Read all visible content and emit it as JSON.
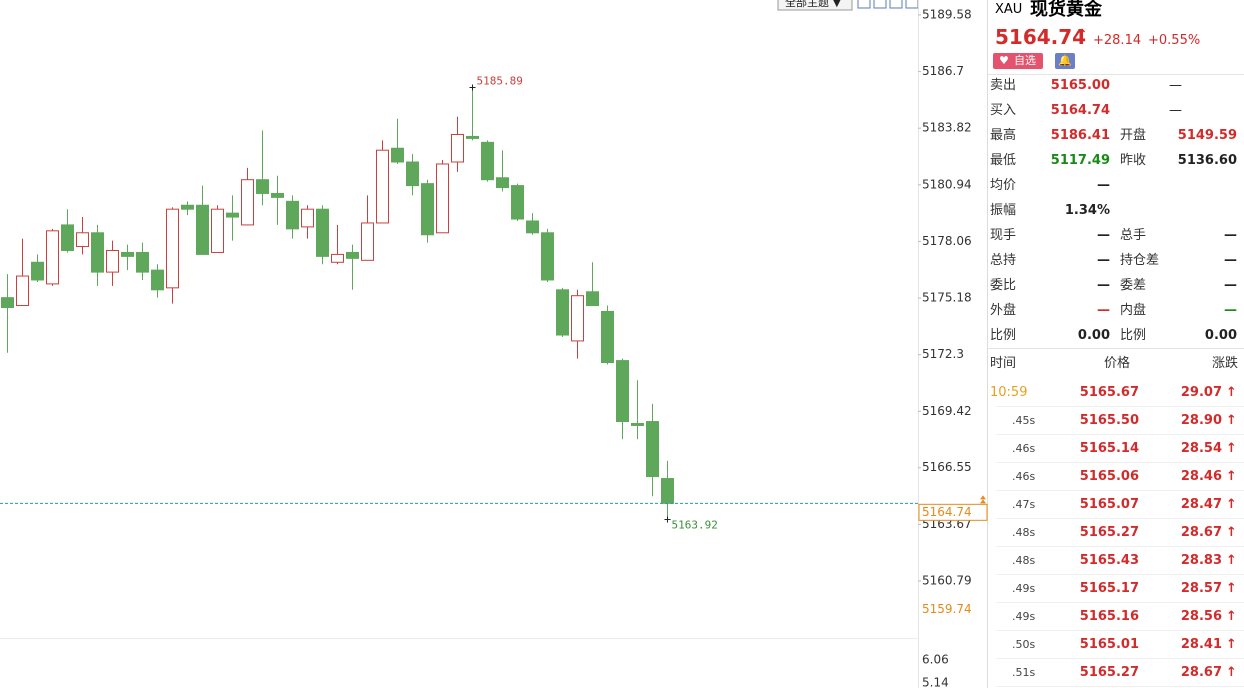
{
  "toolbar": {
    "theme_button": "全部主题"
  },
  "chart_data": {
    "type": "candlestick",
    "ylim": [
      5157.89,
      5190.34
    ],
    "yticks": [
      5189.58,
      5186.7,
      5183.82,
      5180.94,
      5178.06,
      5175.18,
      5172.3,
      5169.42,
      5166.55,
      5163.67,
      5160.79
    ],
    "last": 5164.74,
    "extra_labels": [
      5159.74
    ],
    "volume_ticks": [
      6.06,
      5.14
    ],
    "up_color": "#c8413f",
    "down_color": "#5fa75b",
    "last_color": "#e8891a",
    "last_line_color": "#2a9a9a",
    "candles": [
      {
        "open": 5175.2,
        "high": 5176.4,
        "low": 5172.4,
        "close": 5174.7
      },
      {
        "open": 5174.8,
        "high": 5178.2,
        "low": 5174.8,
        "close": 5176.3
      },
      {
        "open": 5177.0,
        "high": 5177.4,
        "low": 5176.0,
        "close": 5176.1
      },
      {
        "open": 5175.9,
        "high": 5178.7,
        "low": 5175.8,
        "close": 5178.6
      },
      {
        "open": 5178.9,
        "high": 5179.7,
        "low": 5177.5,
        "close": 5177.6
      },
      {
        "open": 5177.8,
        "high": 5179.3,
        "low": 5177.4,
        "close": 5178.5
      },
      {
        "open": 5178.5,
        "high": 5178.9,
        "low": 5175.8,
        "close": 5176.5
      },
      {
        "open": 5176.5,
        "high": 5178.1,
        "low": 5175.8,
        "close": 5177.6
      },
      {
        "open": 5177.5,
        "high": 5177.9,
        "low": 5176.6,
        "close": 5177.3
      },
      {
        "open": 5177.5,
        "high": 5178.0,
        "low": 5176.1,
        "close": 5176.5
      },
      {
        "open": 5176.6,
        "high": 5176.9,
        "low": 5175.2,
        "close": 5175.6
      },
      {
        "open": 5175.7,
        "high": 5179.8,
        "low": 5174.9,
        "close": 5179.7
      },
      {
        "open": 5179.9,
        "high": 5180.1,
        "low": 5179.4,
        "close": 5179.7
      },
      {
        "open": 5179.9,
        "high": 5180.9,
        "low": 5177.4,
        "close": 5177.4
      },
      {
        "open": 5177.5,
        "high": 5179.9,
        "low": 5177.5,
        "close": 5179.7
      },
      {
        "open": 5179.5,
        "high": 5180.4,
        "low": 5178.1,
        "close": 5179.3
      },
      {
        "open": 5178.9,
        "high": 5181.8,
        "low": 5178.9,
        "close": 5181.2
      },
      {
        "open": 5181.2,
        "high": 5183.7,
        "low": 5179.9,
        "close": 5180.5
      },
      {
        "open": 5180.5,
        "high": 5181.4,
        "low": 5178.9,
        "close": 5180.3
      },
      {
        "open": 5180.1,
        "high": 5180.4,
        "low": 5178.2,
        "close": 5178.7
      },
      {
        "open": 5178.8,
        "high": 5179.9,
        "low": 5178.2,
        "close": 5179.7
      },
      {
        "open": 5179.7,
        "high": 5179.9,
        "low": 5176.9,
        "close": 5177.3
      },
      {
        "open": 5177.0,
        "high": 5178.9,
        "low": 5176.9,
        "close": 5177.4
      },
      {
        "open": 5177.5,
        "high": 5177.9,
        "low": 5175.6,
        "close": 5177.2
      },
      {
        "open": 5177.1,
        "high": 5180.4,
        "low": 5177.1,
        "close": 5179.0
      },
      {
        "open": 5179.0,
        "high": 5183.2,
        "low": 5179.0,
        "close": 5182.7
      },
      {
        "open": 5182.8,
        "high": 5184.3,
        "low": 5182.0,
        "close": 5182.1
      },
      {
        "open": 5182.1,
        "high": 5182.5,
        "low": 5180.4,
        "close": 5180.9
      },
      {
        "open": 5181.0,
        "high": 5181.2,
        "low": 5178.0,
        "close": 5178.4
      },
      {
        "open": 5178.5,
        "high": 5182.2,
        "low": 5178.5,
        "close": 5182.0
      },
      {
        "open": 5182.1,
        "high": 5184.4,
        "low": 5181.6,
        "close": 5183.5
      },
      {
        "open": 5183.4,
        "high": 5185.89,
        "low": 5183.2,
        "close": 5183.3
      },
      {
        "open": 5183.1,
        "high": 5183.2,
        "low": 5181.1,
        "close": 5181.2
      },
      {
        "open": 5181.3,
        "high": 5182.7,
        "low": 5180.6,
        "close": 5180.8
      },
      {
        "open": 5180.9,
        "high": 5181.0,
        "low": 5179.1,
        "close": 5179.2
      },
      {
        "open": 5179.1,
        "high": 5179.5,
        "low": 5178.4,
        "close": 5178.5
      },
      {
        "open": 5178.5,
        "high": 5178.7,
        "low": 5176.0,
        "close": 5176.1
      },
      {
        "open": 5175.6,
        "high": 5175.7,
        "low": 5173.2,
        "close": 5173.3
      },
      {
        "open": 5173.0,
        "high": 5175.6,
        "low": 5172.1,
        "close": 5175.3
      },
      {
        "open": 5175.5,
        "high": 5177.0,
        "low": 5174.8,
        "close": 5174.8
      },
      {
        "open": 5174.5,
        "high": 5174.8,
        "low": 5171.8,
        "close": 5171.9
      },
      {
        "open": 5172.0,
        "high": 5172.1,
        "low": 5168.0,
        "close": 5168.9
      },
      {
        "open": 5168.8,
        "high": 5171.0,
        "low": 5168.0,
        "close": 5168.7
      },
      {
        "open": 5168.9,
        "high": 5169.8,
        "low": 5165.1,
        "close": 5166.1
      },
      {
        "open": 5166.0,
        "high": 5166.9,
        "low": 5163.92,
        "close": 5164.74
      }
    ]
  },
  "quote": {
    "symbol": "XAU",
    "name": "现货黄金",
    "change": "+28.14",
    "change_pct": "+0.55%",
    "watch_button": "自选"
  },
  "stats": [
    {
      "label": "卖出",
      "value": "5165.00",
      "color": "#d12b2b",
      "value2": "—"
    },
    {
      "label": "买入",
      "value": "5164.74",
      "color": "#d12b2b",
      "value2": "—"
    },
    {
      "label": "最高",
      "value": "5186.41",
      "color": "#d12b2b",
      "label2": "开盘",
      "value2": "5149.59",
      "color2": "#d12b2b"
    },
    {
      "label": "最低",
      "value": "5117.49",
      "color": "#178a17",
      "label2": "昨收",
      "value2": "5136.60",
      "color2": "#222222"
    },
    {
      "label": "均价",
      "value": "—",
      "color": "#222222"
    },
    {
      "label": "振幅",
      "value": "1.34%",
      "color": "#222222"
    },
    {
      "label": "现手",
      "value": "—",
      "color": "#222222",
      "label2": "总手",
      "value2": "—",
      "color2": "#222222"
    },
    {
      "label": "总持",
      "value": "—",
      "color": "#222222",
      "label2": "持仓差",
      "value2": "—",
      "color2": "#222222"
    },
    {
      "label": "委比",
      "value": "—",
      "color": "#222222",
      "label2": "委差",
      "value2": "—",
      "color2": "#222222"
    },
    {
      "label": "外盘",
      "value": "—",
      "color": "#d12b2b",
      "label2": "内盘",
      "value2": "—",
      "color2": "#178a17"
    },
    {
      "label": "比例",
      "value": "0.00",
      "color": "#222222",
      "label2": "比例",
      "value2": "0.00",
      "color2": "#222222"
    }
  ],
  "ticks": {
    "columns": [
      "时间",
      "价格",
      "涨跌"
    ],
    "rows": [
      [
        "10:59",
        "5165.67",
        "29.07"
      ],
      [
        ".45s",
        "5165.50",
        "28.90"
      ],
      [
        ".46s",
        "5165.14",
        "28.54"
      ],
      [
        ".46s",
        "5165.06",
        "28.46"
      ],
      [
        ".47s",
        "5165.07",
        "28.47"
      ],
      [
        ".48s",
        "5165.27",
        "28.67"
      ],
      [
        ".48s",
        "5165.43",
        "28.83"
      ],
      [
        ".49s",
        "5165.17",
        "28.57"
      ],
      [
        ".49s",
        "5165.16",
        "28.56"
      ],
      [
        ".50s",
        "5165.01",
        "28.41"
      ],
      [
        ".51s",
        "5165.27",
        "28.67"
      ]
    ]
  }
}
